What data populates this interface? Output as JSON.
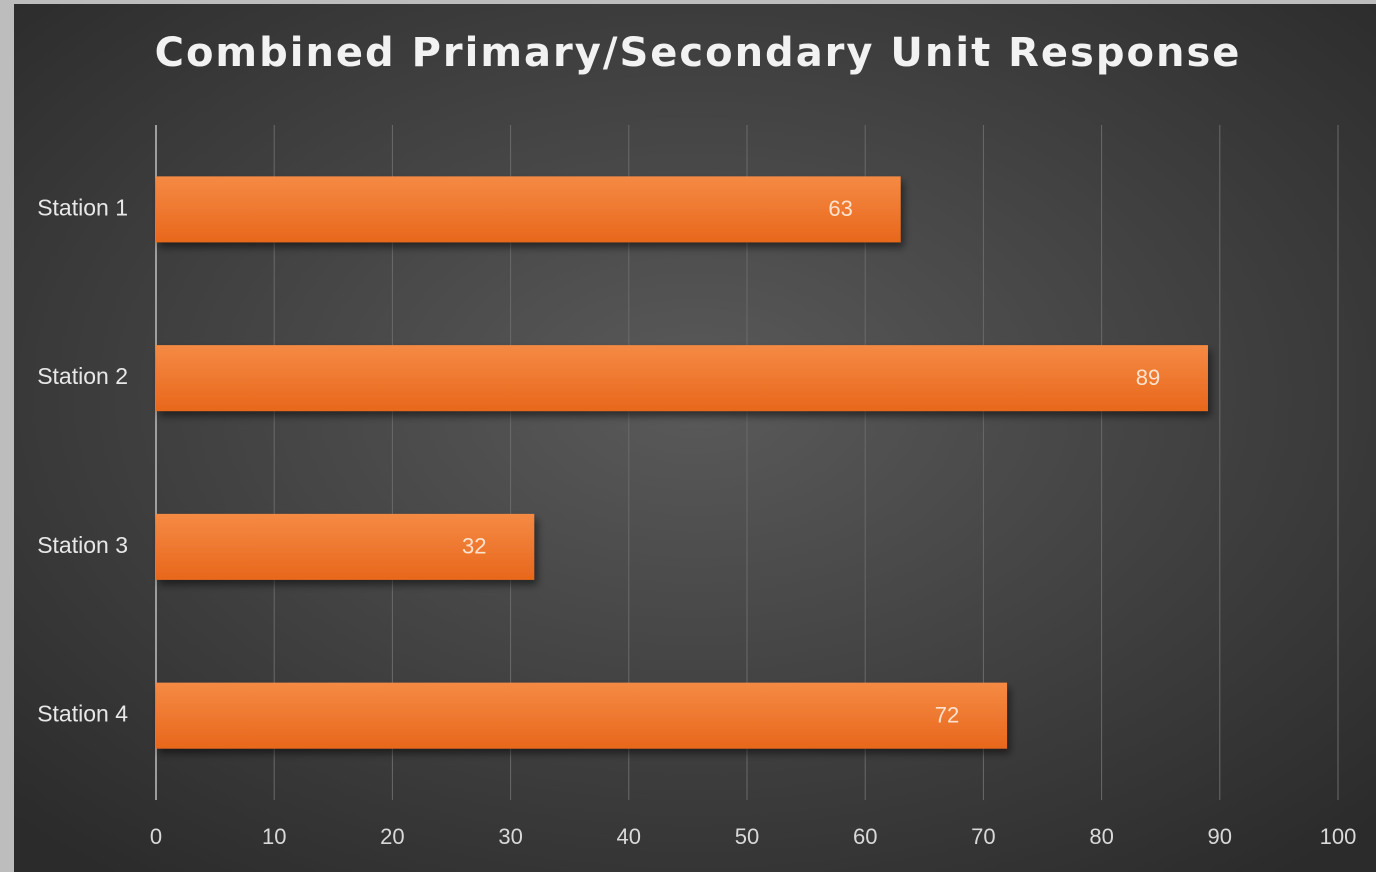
{
  "chart_data": {
    "type": "bar",
    "orientation": "horizontal",
    "title": "Combined Primary/Secondary Unit Response",
    "categories": [
      "Station 1",
      "Station 2",
      "Station 3",
      "Station 4"
    ],
    "values": [
      63,
      89,
      32,
      72
    ],
    "color": "#f07a2e",
    "xlim": [
      0,
      100
    ],
    "xticks": [
      0,
      10,
      20,
      30,
      40,
      50,
      60,
      70,
      80,
      90,
      100
    ],
    "grid": true
  }
}
